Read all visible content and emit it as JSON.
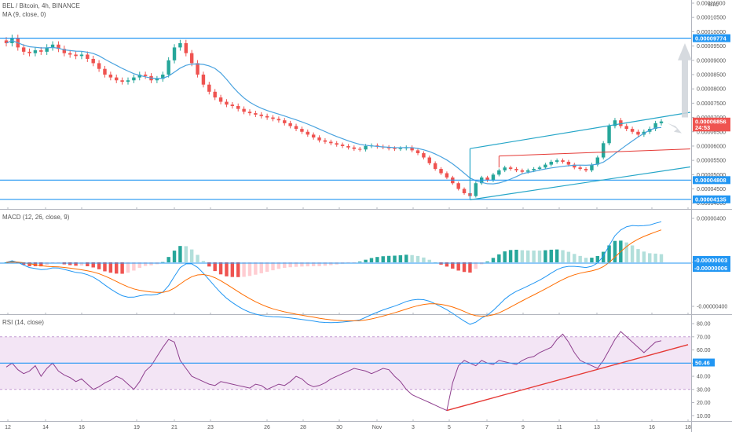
{
  "header": {
    "symbol_line": "BEL / Bitcoin, 4h, BINANCE",
    "ma_line": "MA (9, close, 0)",
    "currency": "BTC",
    "macd_line": "MACD (12, 26, close, 9)",
    "rsi_line": "RSI (14, close)"
  },
  "colors": {
    "up": "#26a69a",
    "down": "#ef5350",
    "ma": "#4aa3df",
    "hline": "#2196f3",
    "channel": "#26a6c8",
    "red_line": "#e53935",
    "macd": "#2196f3",
    "signal": "#ff6d00",
    "rsi": "#8e3f8e",
    "rsi_band": "#f3e5f5",
    "projection": "#cfd4d9"
  },
  "chart_data": [
    {
      "type": "candlestick",
      "title": "BEL / Bitcoin, 4h, BINANCE",
      "ylabel": "BTC",
      "ylim": [
        3.8e-05,
        0.00011
      ],
      "y_ticks": [
        "0.00011000",
        "0.00010500",
        "0.00010000",
        "0.00009500",
        "0.00009000",
        "0.00008500",
        "0.00008000",
        "0.00007500",
        "0.00007000",
        "0.00006500",
        "0.00006000",
        "0.00005500",
        "0.00005000",
        "0.00004500",
        "0.00004000"
      ],
      "x_ticks": [
        "12",
        "14",
        "16",
        "19",
        "21",
        "23",
        "26",
        "28",
        "30",
        "Nov",
        "3",
        "5",
        "7",
        "9",
        "11",
        "13",
        "16",
        "18"
      ],
      "price_tags": [
        {
          "label": "0.00009774",
          "value": 9.774e-05,
          "color": "#2196f3"
        },
        {
          "label": "0.00006856",
          "value": 6.856e-05,
          "color": "#ef5350"
        },
        {
          "label": "24:53",
          "value": 6.65e-05,
          "color": "#ef5350"
        },
        {
          "label": "0.00004808",
          "value": 4.808e-05,
          "color": "#2196f3"
        },
        {
          "label": "0.00004135",
          "value": 4.135e-05,
          "color": "#2196f3"
        }
      ],
      "horizontal_levels": [
        9.774e-05,
        4.808e-05,
        4.135e-05
      ],
      "close_approx": [
        9.6e-05,
        9.78e-05,
        9.45e-05,
        9.3e-05,
        9.25e-05,
        9.35e-05,
        9.3e-05,
        9.45e-05,
        9.55e-05,
        9.4e-05,
        9.25e-05,
        9.2e-05,
        9.15e-05,
        9.2e-05,
        9.05e-05,
        8.9e-05,
        8.7e-05,
        8.5e-05,
        8.4e-05,
        8.3e-05,
        8.25e-05,
        8.3e-05,
        8.4e-05,
        8.5e-05,
        8.45e-05,
        8.3e-05,
        8.35e-05,
        8.5e-05,
        9e-05,
        9.45e-05,
        9.6e-05,
        9.25e-05,
        8.9e-05,
        8.5e-05,
        8.15e-05,
        7.9e-05,
        7.7e-05,
        7.55e-05,
        7.45e-05,
        7.4e-05,
        7.3e-05,
        7.2e-05,
        7.15e-05,
        7.1e-05,
        7.05e-05,
        7e-05,
        6.95e-05,
        6.9e-05,
        6.8e-05,
        6.7e-05,
        6.6e-05,
        6.5e-05,
        6.4e-05,
        6.3e-05,
        6.2e-05,
        6.15e-05,
        6.1e-05,
        6.05e-05,
        6e-05,
        5.95e-05,
        5.9e-05,
        5.88e-05,
        6e-05,
        6.02e-05,
        5.98e-05,
        5.96e-05,
        5.92e-05,
        5.9e-05,
        5.92e-05,
        5.95e-05,
        5.85e-05,
        5.75e-05,
        5.6e-05,
        5.4e-05,
        5.2e-05,
        5.05e-05,
        4.9e-05,
        4.7e-05,
        4.5e-05,
        4.35e-05,
        4.25e-05,
        4.7e-05,
        4.9e-05,
        4.8e-05,
        5e-05,
        5.15e-05,
        5.25e-05,
        5.2e-05,
        5.15e-05,
        5.1e-05,
        5.15e-05,
        5.2e-05,
        5.25e-05,
        5.35e-05,
        5.45e-05,
        5.5e-05,
        5.45e-05,
        5.35e-05,
        5.25e-05,
        5.2e-05,
        5.15e-05,
        5.35e-05,
        5.6e-05,
        6.1e-05,
        6.7e-05,
        6.9e-05,
        6.7e-05,
        6.6e-05,
        6.5e-05,
        6.4e-05,
        6.5e-05,
        6.6e-05,
        6.8e-05,
        6.86e-05
      ],
      "ma_period": 9
    },
    {
      "type": "line",
      "title": "MACD (12, 26, close, 9)",
      "ylim": [
        -4.5e-06,
        4.5e-06
      ],
      "y_ticks": [
        "0.00000400",
        "0.00000000",
        "-0.00000400"
      ],
      "value_tags": [
        {
          "label": "-0.00000003",
          "color": "#2196f3"
        },
        {
          "label": "-0.00000006",
          "color": "#2196f3"
        }
      ],
      "series": []
    },
    {
      "type": "line",
      "title": "RSI (14, close)",
      "ylim": [
        10,
        80
      ],
      "y_ticks": [
        "80.00",
        "70.00",
        "60.00",
        "50.00",
        "40.00",
        "30.00",
        "20.00",
        "10.00"
      ],
      "band": [
        30,
        70
      ],
      "midline": 50,
      "value_tags": [
        {
          "label": "50.46",
          "value": 50.46,
          "color": "#2196f3"
        }
      ],
      "rsi_approx": [
        47,
        50,
        45,
        42,
        44,
        48,
        40,
        46,
        50,
        44,
        41,
        39,
        36,
        38,
        34,
        30,
        32,
        35,
        37,
        40,
        38,
        34,
        30,
        36,
        44,
        48,
        55,
        62,
        68,
        66,
        52,
        46,
        40,
        38,
        36,
        34,
        33,
        36,
        35,
        34,
        33,
        32,
        31,
        34,
        33,
        30,
        32,
        34,
        33,
        36,
        40,
        38,
        34,
        32,
        33,
        35,
        38,
        40,
        42,
        44,
        46,
        45,
        44,
        42,
        44,
        46,
        45,
        40,
        36,
        30,
        26,
        24,
        22,
        20,
        18,
        16,
        14,
        35,
        48,
        52,
        50,
        48,
        52,
        50,
        49,
        52,
        51,
        50,
        49,
        52,
        54,
        55,
        58,
        60,
        62,
        68,
        72,
        66,
        58,
        52,
        50,
        48,
        46,
        52,
        60,
        68,
        74,
        70,
        66,
        62,
        58,
        62,
        66,
        67
      ]
    }
  ]
}
